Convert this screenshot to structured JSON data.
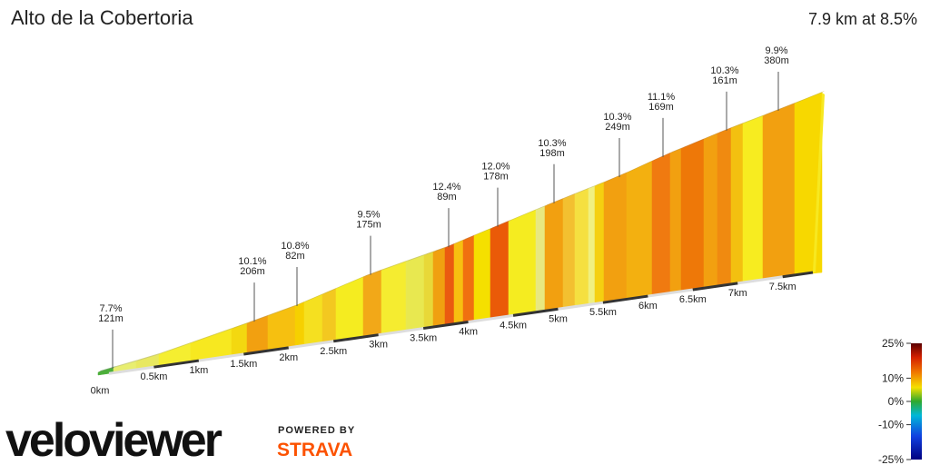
{
  "chart_data": {
    "type": "profile",
    "title": "Alto de la Cobertoria",
    "summary": "7.9 km at 8.5%",
    "annotations": [
      {
        "grade": "7.7%",
        "length": "121m"
      },
      {
        "grade": "10.1%",
        "length": "206m"
      },
      {
        "grade": "10.8%",
        "length": "82m"
      },
      {
        "grade": "9.5%",
        "length": "175m"
      },
      {
        "grade": "12.4%",
        "length": "89m"
      },
      {
        "grade": "12.0%",
        "length": "178m"
      },
      {
        "grade": "10.3%",
        "length": "198m"
      },
      {
        "grade": "10.3%",
        "length": "249m"
      },
      {
        "grade": "11.1%",
        "length": "169m"
      },
      {
        "grade": "10.3%",
        "length": "161m"
      },
      {
        "grade": "9.9%",
        "length": "380m"
      }
    ],
    "xticks": [
      {
        "value": 0,
        "label": "0km"
      },
      {
        "value": 0.5,
        "label": "0.5km"
      },
      {
        "value": 1,
        "label": "1km"
      },
      {
        "value": 1.5,
        "label": "1.5km"
      },
      {
        "value": 2,
        "label": "2km"
      },
      {
        "value": 2.5,
        "label": "2.5km"
      },
      {
        "value": 3,
        "label": "3km"
      },
      {
        "value": 3.5,
        "label": "3.5km"
      },
      {
        "value": 4,
        "label": "4km"
      },
      {
        "value": 4.5,
        "label": "4.5km"
      },
      {
        "value": 5,
        "label": "5km"
      },
      {
        "value": 5.5,
        "label": "5.5km"
      },
      {
        "value": 6,
        "label": "6km"
      },
      {
        "value": 6.5,
        "label": "6.5km"
      },
      {
        "value": 7,
        "label": "7km"
      },
      {
        "value": 7.5,
        "label": "7.5km"
      }
    ],
    "clim": [
      -25,
      25
    ],
    "cticks": [
      {
        "value": 25,
        "label": "25%"
      },
      {
        "value": 10,
        "label": "10%"
      },
      {
        "value": 0,
        "label": "0%"
      },
      {
        "value": -10,
        "label": "-10%"
      },
      {
        "value": -25,
        "label": "-25%"
      }
    ]
  },
  "branding": {
    "logo": "veloviewer",
    "powered": "POWERED BY",
    "strava": "STRAVA"
  }
}
